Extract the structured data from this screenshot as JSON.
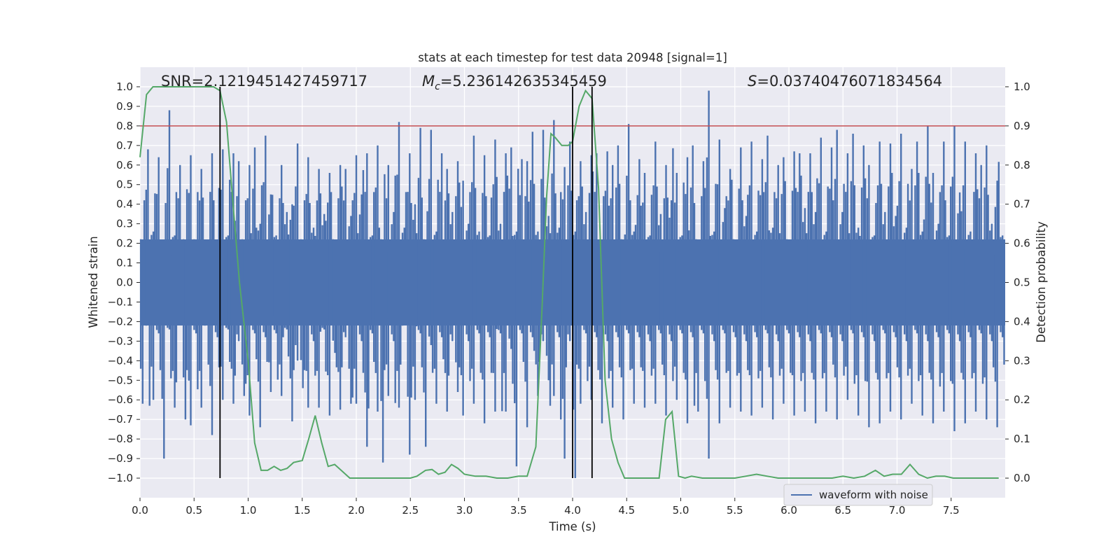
{
  "chart_data": {
    "type": "line",
    "title": "stats at each timestep for test data 20948 [signal=1]",
    "xlabel": "Time (s)",
    "ylabel": "Whitened strain",
    "y2label": "Detection probability",
    "xlim": [
      0.0,
      8.0
    ],
    "ylim": [
      -1.1,
      1.1
    ],
    "y2lim": [
      -0.05,
      1.05
    ],
    "x_ticks": [
      "0.0",
      "0.5",
      "1.0",
      "1.5",
      "2.0",
      "2.5",
      "3.0",
      "3.5",
      "4.0",
      "4.5",
      "5.0",
      "5.5",
      "6.0",
      "6.5",
      "7.0",
      "7.5"
    ],
    "y_ticks": [
      "1.0",
      "0.9",
      "0.8",
      "0.7",
      "0.6",
      "0.5",
      "0.4",
      "0.3",
      "0.2",
      "0.1",
      "0.0",
      "−0.1",
      "−0.2",
      "−0.3",
      "−0.4",
      "−0.5",
      "−0.6",
      "−0.7",
      "−0.8",
      "−0.9",
      "−1.0"
    ],
    "y2_ticks": [
      "1.0",
      "0.9",
      "0.8",
      "0.7",
      "0.6",
      "0.5",
      "0.4",
      "0.3",
      "0.2",
      "0.1",
      "0.0"
    ],
    "grid": true,
    "legend_position": "lower-right",
    "annotations": {
      "snr": "SNR=2.1219451427459717",
      "mc_symbol": "M",
      "mc_subscript": "c",
      "mc_value": "=5.236142635345459",
      "s_symbol": "S",
      "s_value": "=0.03740476071834564"
    },
    "threshold": {
      "axis": "y2",
      "value": 0.9,
      "color": "#c44e52"
    },
    "vertical_lines": [
      0.74,
      4.0,
      4.18
    ],
    "series": [
      {
        "name": "waveform with noise",
        "axis": "y",
        "color": "#4c72b0",
        "envelope_upper": [
          0.22,
          0.68,
          0.26,
          0.64,
          0.2,
          0.88,
          0.24,
          0.6,
          0.22,
          0.65,
          0.22,
          0.58,
          0.2,
          0.66,
          0.18,
          0.68,
          0.24,
          0.66,
          0.62,
          0.22,
          0.6,
          0.69,
          0.3,
          0.75,
          0.45,
          0.24,
          0.6,
          0.36,
          0.4,
          0.71,
          0.22,
          0.64,
          0.28,
          0.58,
          0.35,
          0.56,
          0.22,
          0.6,
          0.58,
          0.34,
          0.65,
          0.45,
          0.66,
          0.24,
          0.7,
          0.22,
          0.6,
          0.36,
          0.82,
          0.28,
          0.66,
          0.4,
          0.79,
          0.22,
          0.78,
          0.26,
          0.66,
          0.58,
          0.36,
          0.62,
          0.52,
          0.3,
          0.75,
          0.26,
          0.65,
          0.24,
          0.73,
          0.3,
          0.66,
          0.69,
          0.26,
          0.63,
          0.62,
          0.77,
          0.26,
          0.78,
          0.34,
          0.83,
          0.28,
          0.59,
          0.72,
          0.26,
          0.62,
          0.36,
          0.65,
          0.66,
          0.22,
          0.67,
          0.6,
          0.7,
          0.22,
          0.81,
          0.26,
          0.63,
          0.56,
          0.24,
          0.72,
          0.35,
          0.6,
          0.42,
          0.56,
          0.24,
          0.64,
          0.7,
          0.22,
          0.62,
          0.98,
          0.26,
          0.73,
          0.38,
          0.58,
          0.22,
          0.69,
          0.34,
          0.72,
          0.26,
          0.63,
          0.75,
          0.28,
          0.6,
          0.64,
          0.22,
          0.67,
          0.66,
          0.38,
          0.66,
          0.36,
          0.74,
          0.26,
          0.69,
          0.78,
          0.36,
          0.66,
          0.76,
          0.28,
          0.7,
          0.6,
          0.24,
          0.72,
          0.36,
          0.71,
          0.34,
          0.76,
          0.28,
          0.58,
          0.72,
          0.26,
          0.8,
          0.56,
          0.3,
          0.72,
          0.24,
          0.8,
          0.46,
          0.72,
          0.26,
          0.66,
          0.6,
          0.7,
          0.3,
          0.52,
          0.24
        ],
        "envelope_lower": [
          -0.62,
          -0.22,
          -0.6,
          -0.26,
          -0.9,
          -0.24,
          -0.64,
          -0.2,
          -0.7,
          -0.73,
          -0.26,
          -0.64,
          -0.22,
          -0.78,
          -0.28,
          -0.6,
          -0.24,
          -0.62,
          -0.3,
          -0.58,
          -0.68,
          -0.26,
          -0.74,
          -0.28,
          -0.56,
          -0.26,
          -0.58,
          -0.24,
          -0.71,
          -0.4,
          -0.54,
          -0.64,
          -0.3,
          -0.64,
          -0.24,
          -0.68,
          -0.36,
          -0.65,
          -0.28,
          -0.62,
          -0.62,
          -0.3,
          -0.84,
          -0.26,
          -0.66,
          -0.92,
          -0.58,
          -0.3,
          -0.64,
          -0.22,
          -0.88,
          -0.6,
          -0.26,
          -0.84,
          -0.32,
          -0.62,
          -0.28,
          -0.66,
          -0.3,
          -0.56,
          -0.68,
          -0.3,
          -0.62,
          -0.26,
          -0.72,
          -0.28,
          -0.66,
          -0.26,
          -0.66,
          -0.34,
          -0.94,
          -0.26,
          -0.74,
          -0.28,
          -0.58,
          -0.3,
          -0.5,
          -0.58,
          -0.28,
          -0.9,
          -0.3,
          -1.0,
          -0.62,
          -0.26,
          -0.6,
          -0.28,
          -0.72,
          -0.3,
          -0.64,
          -0.28,
          -0.7,
          -0.26,
          -0.62,
          -0.28,
          -0.64,
          -0.3,
          -0.62,
          -0.26,
          -0.68,
          -0.3,
          -0.6,
          -0.26,
          -0.72,
          -0.28,
          -0.66,
          -0.26,
          -0.9,
          -0.3,
          -0.72,
          -0.26,
          -0.64,
          -0.28,
          -0.66,
          -0.3,
          -0.68,
          -0.28,
          -0.64,
          -0.26,
          -0.7,
          -0.3,
          -0.62,
          -0.26,
          -0.68,
          -0.28,
          -0.66,
          -0.3,
          -0.72,
          -0.26,
          -0.66,
          -0.28,
          -0.7,
          -0.3,
          -0.6,
          -0.26,
          -0.68,
          -0.28,
          -0.74,
          -0.3,
          -0.72,
          -0.26,
          -0.66,
          -0.28,
          -0.7,
          -0.3,
          -0.62,
          -0.26,
          -0.68,
          -0.3,
          -0.72,
          -0.28,
          -0.66,
          -0.26,
          -0.76,
          -0.3,
          -0.72,
          -0.28,
          -0.66,
          -0.26,
          -0.7,
          -0.3,
          -0.74,
          -0.28,
          -0.62,
          -0.3
        ]
      },
      {
        "axis": "y2",
        "color": "#55a868",
        "x": [
          0.0,
          0.06,
          0.12,
          0.2,
          0.3,
          0.4,
          0.5,
          0.6,
          0.68,
          0.74,
          0.8,
          0.86,
          0.92,
          1.0,
          1.06,
          1.12,
          1.18,
          1.24,
          1.3,
          1.36,
          1.42,
          1.5,
          1.56,
          1.62,
          1.68,
          1.74,
          1.8,
          1.86,
          1.94,
          2.0,
          2.1,
          2.2,
          2.3,
          2.4,
          2.5,
          2.56,
          2.64,
          2.7,
          2.76,
          2.82,
          2.88,
          2.94,
          3.0,
          3.1,
          3.2,
          3.3,
          3.4,
          3.5,
          3.58,
          3.66,
          3.72,
          3.76,
          3.8,
          3.84,
          3.9,
          3.96,
          4.0,
          4.06,
          4.12,
          4.18,
          4.24,
          4.3,
          4.36,
          4.42,
          4.48,
          4.56,
          4.64,
          4.72,
          4.8,
          4.86,
          4.92,
          4.98,
          5.04,
          5.1,
          5.2,
          5.3,
          5.4,
          5.5,
          5.6,
          5.7,
          5.8,
          5.9,
          6.0,
          6.1,
          6.2,
          6.3,
          6.4,
          6.5,
          6.6,
          6.7,
          6.8,
          6.88,
          6.96,
          7.04,
          7.12,
          7.2,
          7.28,
          7.36,
          7.44,
          7.52,
          7.6,
          7.7,
          7.8,
          7.9,
          7.94
        ],
        "values": [
          0.82,
          0.98,
          1.0,
          1.0,
          1.0,
          1.0,
          1.0,
          1.0,
          1.0,
          0.99,
          0.91,
          0.7,
          0.5,
          0.3,
          0.09,
          0.02,
          0.02,
          0.03,
          0.02,
          0.025,
          0.04,
          0.045,
          0.1,
          0.16,
          0.09,
          0.03,
          0.035,
          0.02,
          0.0,
          0.0,
          0.0,
          0.0,
          0.0,
          0.0,
          0.0,
          0.005,
          0.02,
          0.022,
          0.01,
          0.015,
          0.035,
          0.025,
          0.01,
          0.005,
          0.005,
          0.0,
          0.0,
          0.005,
          0.005,
          0.08,
          0.45,
          0.72,
          0.88,
          0.87,
          0.85,
          0.85,
          0.86,
          0.95,
          0.99,
          0.97,
          0.74,
          0.25,
          0.1,
          0.04,
          0.0,
          0.0,
          0.0,
          0.0,
          0.0,
          0.15,
          0.17,
          0.005,
          0.0,
          0.005,
          0.0,
          0.0,
          0.0,
          0.0,
          0.005,
          0.01,
          0.005,
          0.0,
          0.0,
          0.0,
          0.0,
          0.0,
          0.0,
          0.005,
          0.0,
          0.005,
          0.02,
          0.005,
          0.01,
          0.01,
          0.035,
          0.01,
          0.0,
          0.005,
          0.005,
          0.0,
          0.0,
          0.0,
          0.0,
          0.0,
          0.0
        ]
      }
    ]
  }
}
